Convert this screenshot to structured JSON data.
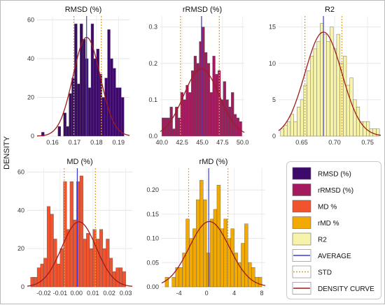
{
  "figure": {
    "y_axis_label": "DENSITY"
  },
  "colors": {
    "mean_line": "#3b3bd6",
    "std_line": "#e0a020",
    "density_curve": "#a11a1a"
  },
  "legend": [
    {
      "label": "RMSD (%)",
      "type": "swatch",
      "color": "#3d0a6b"
    },
    {
      "label": "rRMSD (%)",
      "type": "swatch",
      "color": "#a31a5e"
    },
    {
      "label": "MD %",
      "type": "swatch",
      "color": "#f0532d"
    },
    {
      "label": "rMD %",
      "type": "swatch",
      "color": "#f2a900"
    },
    {
      "label": "R2",
      "type": "swatch",
      "color": "#f7f3a8"
    },
    {
      "label": "AVERAGE",
      "type": "line",
      "color": "#3b3bd6"
    },
    {
      "label": "STD",
      "type": "dotted",
      "color": "#e0a020"
    },
    {
      "label": "DENSITY CURVE",
      "type": "line",
      "color": "#a11a1a"
    }
  ],
  "chart_data": [
    {
      "type": "bar",
      "title": "RMSD (%)",
      "color": "#3d0a6b",
      "xlim": [
        0.153,
        0.195
      ],
      "ylim": [
        0,
        62
      ],
      "xticks": [
        "0.16",
        "0.17",
        "0.18",
        "0.19"
      ],
      "xtick_values": [
        0.16,
        0.17,
        0.18,
        0.19
      ],
      "yticks": [
        "0",
        "20",
        "40",
        "60"
      ],
      "ytick_values": [
        0,
        20,
        40,
        60
      ],
      "bin_start": 0.155,
      "bin_width": 0.00125,
      "values": [
        2,
        0,
        0,
        0,
        0,
        0,
        5,
        0,
        12,
        5,
        22,
        30,
        58,
        27,
        58,
        50,
        40,
        25,
        58,
        40,
        45,
        32,
        20,
        30,
        55,
        40,
        35,
        25,
        25,
        20
      ],
      "mean": 0.1755,
      "std_lines": [
        0.1697,
        0.1822
      ],
      "density_curve": {
        "mean": 0.1755,
        "sd": 0.0062,
        "peak": 51
      }
    },
    {
      "type": "bar",
      "title": "rRMSD (%)",
      "color": "#a31a5e",
      "xlim": [
        39.8,
        50.2
      ],
      "ylim": [
        0,
        0.33
      ],
      "xticks": [
        "40.0",
        "42.5",
        "45.0",
        "47.5",
        "50.0"
      ],
      "xtick_values": [
        40.0,
        42.5,
        45.0,
        47.5,
        50.0
      ],
      "yticks": [
        "0.0",
        "0.1",
        "0.2",
        "0.3"
      ],
      "ytick_values": [
        0,
        0.1,
        0.2,
        0.3
      ],
      "bin_start": 40.0,
      "bin_width": 0.33,
      "values": [
        0.05,
        0.05,
        0.05,
        0.08,
        0.02,
        0.08,
        0.05,
        0.12,
        0.1,
        0.14,
        0.12,
        0.18,
        0.22,
        0.2,
        0.26,
        0.3,
        0.23,
        0.2,
        0.12,
        0.22,
        0.17,
        0.18,
        0.1,
        0.15,
        0.1,
        0.08,
        0.12,
        0.06,
        0.05,
        0.04
      ],
      "mean": 44.9,
      "std_lines": [
        42.3,
        47.1
      ],
      "density_curve": {
        "mean": 44.9,
        "sd": 2.2,
        "peak": 0.185
      }
    },
    {
      "type": "bar",
      "title": "R2",
      "color": "#f7f3a8",
      "xlim": [
        0.615,
        0.77
      ],
      "ylim": [
        0,
        16.5
      ],
      "xticks": [
        "0.65",
        "0.70",
        "0.75"
      ],
      "xtick_values": [
        0.65,
        0.7,
        0.75
      ],
      "yticks": [
        "0",
        "5",
        "10",
        "15"
      ],
      "ytick_values": [
        0,
        5,
        10,
        15
      ],
      "bin_start": 0.618,
      "bin_width": 0.005,
      "values": [
        1,
        1.5,
        2,
        3,
        2,
        4,
        5,
        7,
        9,
        11,
        12,
        13,
        15.5,
        14,
        13,
        15,
        12,
        14,
        10,
        11,
        7,
        8,
        5,
        4,
        2,
        2,
        2,
        1,
        1,
        1
      ],
      "mean": 0.683,
      "std_lines": [
        0.655,
        0.711
      ],
      "density_curve": {
        "mean": 0.683,
        "sd": 0.028,
        "peak": 14.3
      }
    },
    {
      "type": "bar",
      "title": "MD (%)",
      "color": "#f0532d",
      "xlim": [
        -0.03,
        0.034
      ],
      "ylim": [
        0,
        62
      ],
      "xticks": [
        "-0.02",
        "-0.01",
        "0.00",
        "0.01",
        "0.02",
        "0.03"
      ],
      "xtick_values": [
        -0.02,
        -0.01,
        0.0,
        0.01,
        0.02,
        0.03
      ],
      "yticks": [
        "0",
        "20",
        "40",
        "60"
      ],
      "ytick_values": [
        0,
        20,
        40,
        60
      ],
      "bin_start": -0.028,
      "bin_width": 0.002,
      "values": [
        5,
        5,
        10,
        12,
        15,
        42,
        38,
        25,
        12,
        20,
        55,
        30,
        55,
        35,
        55,
        58,
        25,
        28,
        20,
        30,
        25,
        30,
        20,
        25,
        15,
        8,
        10,
        10,
        8
      ],
      "mean": 0.0005,
      "std_lines": [
        -0.0075,
        0.0115
      ],
      "density_curve": {
        "mean": 0.0015,
        "sd": 0.0105,
        "peak": 34
      }
    },
    {
      "type": "bar",
      "title": "rMD (%)",
      "color": "#f2a900",
      "xlim": [
        -6.5,
        8.5
      ],
      "ylim": [
        0,
        0.245
      ],
      "xticks": [
        "-4",
        "0",
        "4",
        "8"
      ],
      "xtick_values": [
        -4,
        0,
        4,
        8
      ],
      "yticks": [
        "0.00",
        "0.05",
        "0.10",
        "0.15",
        "0.20"
      ],
      "ytick_values": [
        0,
        0.05,
        0.1,
        0.15,
        0.2
      ],
      "bin_start": -6.0,
      "bin_width": 0.5,
      "values": [
        0.02,
        0.0,
        0.02,
        0.04,
        0.04,
        0.07,
        0.14,
        0.1,
        0.12,
        0.18,
        0.22,
        0.18,
        0.07,
        0.14,
        0.16,
        0.21,
        0.12,
        0.14,
        0.1,
        0.12,
        0.07,
        0.05,
        0.09,
        0.13,
        0.05,
        0.04,
        0.02,
        0.02
      ],
      "mean": 0.3,
      "std_lines": [
        -2.6,
        3.1
      ],
      "density_curve": {
        "mean": 0.4,
        "sd": 2.9,
        "peak": 0.135
      }
    }
  ]
}
